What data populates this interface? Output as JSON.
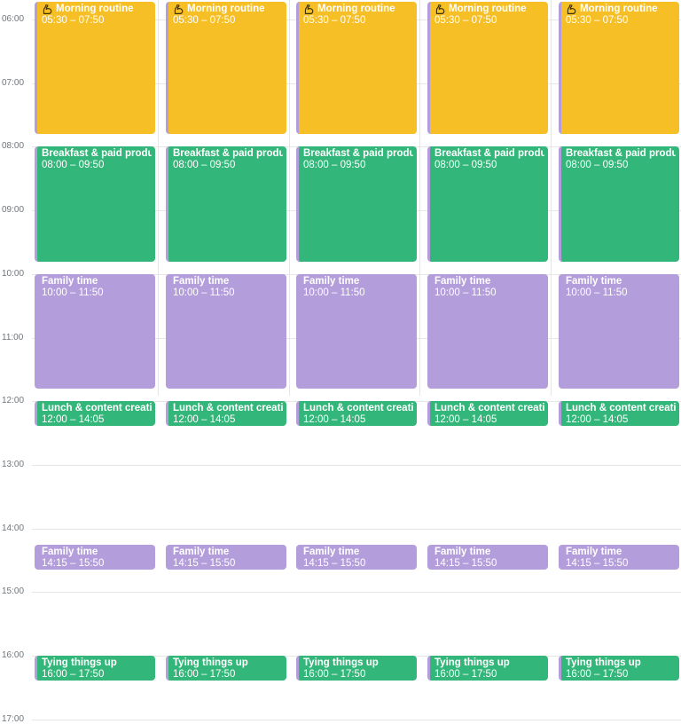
{
  "hours": [
    "06:00",
    "07:00",
    "08:00",
    "09:00",
    "10:00",
    "11:00",
    "12:00",
    "13:00",
    "14:00",
    "15:00",
    "16:00",
    "17:00"
  ],
  "days": [
    {
      "events": [
        {
          "title": "Morning routine",
          "time": "05:30 – 07:50",
          "color": "#f6bf26",
          "icon": "flexed-arm-icon"
        },
        {
          "title": "Breakfast & paid products",
          "time": "08:00 – 09:50",
          "color": "#33b679"
        },
        {
          "title": "Family time",
          "time": "10:00 – 11:50",
          "color": "#b39ddb"
        },
        {
          "title": "Lunch & content creation",
          "time": "12:00 – 14:05",
          "color": "#33b679"
        },
        {
          "title": "Family time",
          "time": "14:15 – 15:50",
          "color": "#b39ddb"
        },
        {
          "title": "Tying things up",
          "time": "16:00 – 17:50",
          "color": "#33b679"
        }
      ]
    },
    {
      "events": [
        {
          "title": "Morning routine",
          "time": "05:30 – 07:50",
          "color": "#f6bf26",
          "icon": "flexed-arm-icon"
        },
        {
          "title": "Breakfast & paid products",
          "time": "08:00 – 09:50",
          "color": "#33b679"
        },
        {
          "title": "Family time",
          "time": "10:00 – 11:50",
          "color": "#b39ddb"
        },
        {
          "title": "Lunch & content creation",
          "time": "12:00 – 14:05",
          "color": "#33b679"
        },
        {
          "title": "Family time",
          "time": "14:15 – 15:50",
          "color": "#b39ddb"
        },
        {
          "title": "Tying things up",
          "time": "16:00 – 17:50",
          "color": "#33b679"
        }
      ]
    },
    {
      "events": [
        {
          "title": "Morning routine",
          "time": "05:30 – 07:50",
          "color": "#f6bf26",
          "icon": "flexed-arm-icon"
        },
        {
          "title": "Breakfast & paid products",
          "time": "08:00 – 09:50",
          "color": "#33b679"
        },
        {
          "title": "Family time",
          "time": "10:00 – 11:50",
          "color": "#b39ddb"
        },
        {
          "title": "Lunch & content creation",
          "time": "12:00 – 14:05",
          "color": "#33b679"
        },
        {
          "title": "Family time",
          "time": "14:15 – 15:50",
          "color": "#b39ddb"
        },
        {
          "title": "Tying things up",
          "time": "16:00 – 17:50",
          "color": "#33b679"
        }
      ]
    },
    {
      "events": [
        {
          "title": "Morning routine",
          "time": "05:30 – 07:50",
          "color": "#f6bf26",
          "icon": "flexed-arm-icon"
        },
        {
          "title": "Breakfast & paid products",
          "time": "08:00 – 09:50",
          "color": "#33b679"
        },
        {
          "title": "Family time",
          "time": "10:00 – 11:50",
          "color": "#b39ddb"
        },
        {
          "title": "Lunch & content creation",
          "time": "12:00 – 14:05",
          "color": "#33b679"
        },
        {
          "title": "Family time",
          "time": "14:15 – 15:50",
          "color": "#b39ddb"
        },
        {
          "title": "Tying things up",
          "time": "16:00 – 17:50",
          "color": "#33b679"
        }
      ]
    },
    {
      "events": [
        {
          "title": "Morning routine",
          "time": "05:30 – 07:50",
          "color": "#f6bf26",
          "icon": "flexed-arm-icon"
        },
        {
          "title": "Breakfast & paid products",
          "time": "08:00 – 09:50",
          "color": "#33b679"
        },
        {
          "title": "Family time",
          "time": "10:00 – 11:50",
          "color": "#b39ddb"
        },
        {
          "title": "Lunch & content creation",
          "time": "12:00 – 14:05",
          "color": "#33b679"
        },
        {
          "title": "Family time",
          "time": "14:15 – 15:50",
          "color": "#b39ddb"
        },
        {
          "title": "Tying things up",
          "time": "16:00 – 17:50",
          "color": "#33b679"
        }
      ]
    }
  ]
}
